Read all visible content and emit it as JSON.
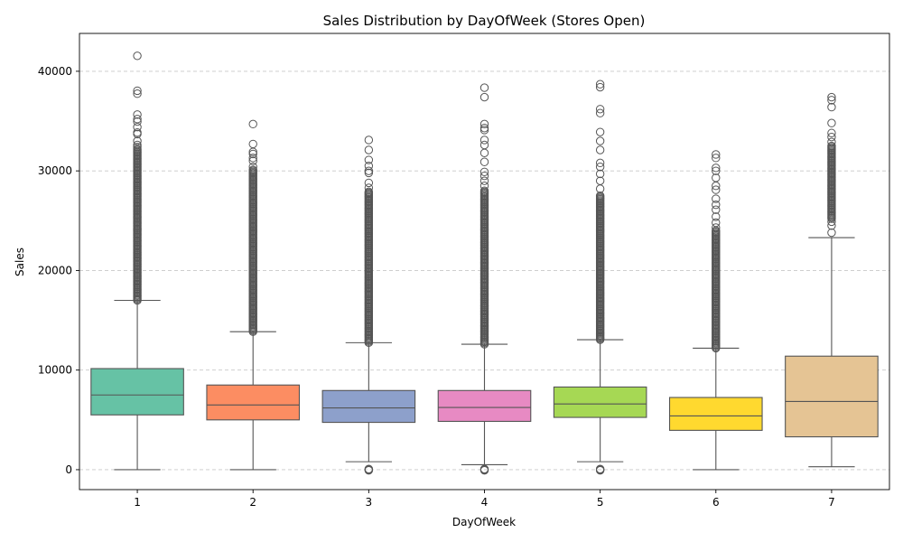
{
  "chart_data": {
    "type": "box",
    "title": "Sales Distribution by DayOfWeek (Stores Open)",
    "xlabel": "DayOfWeek",
    "ylabel": "Sales",
    "ylim": [
      -2000,
      43800
    ],
    "yticks": [
      0,
      10000,
      20000,
      30000,
      40000
    ],
    "grid": "y-dashed",
    "categories": [
      "1",
      "2",
      "3",
      "4",
      "5",
      "6",
      "7"
    ],
    "boxes": [
      {
        "category": "1",
        "color": "#66c2a5",
        "whisker_low": 0,
        "q1": 5500,
        "median": 7500,
        "q3": 10150,
        "whisker_high": 17000,
        "fliers_high": [
          41550,
          38050,
          37750,
          35650,
          35200,
          34950,
          34400,
          33850,
          33700,
          33000,
          32600,
          32400
        ],
        "dense_high": [
          17000,
          32200
        ],
        "fliers_low": []
      },
      {
        "category": "2",
        "color": "#fc8d62",
        "whisker_low": 0,
        "q1": 5000,
        "median": 6500,
        "q3": 8500,
        "whisker_high": 13850,
        "fliers_high": [
          34700,
          32700,
          31900,
          31700,
          31300,
          31000,
          30400,
          30100
        ],
        "dense_high": [
          13850,
          30000
        ],
        "fliers_low": []
      },
      {
        "category": "3",
        "color": "#8da0cb",
        "whisker_low": 800,
        "q1": 4750,
        "median": 6200,
        "q3": 7950,
        "whisker_high": 12750,
        "fliers_high": [
          33100,
          32100,
          31100,
          30500,
          30000,
          29800,
          28800,
          28300,
          27900
        ],
        "dense_high": [
          12750,
          27800
        ],
        "fliers_low": [
          0
        ]
      },
      {
        "category": "4",
        "color": "#e78ac3",
        "whisker_low": 500,
        "q1": 4850,
        "median": 6250,
        "q3": 7950,
        "whisker_high": 12600,
        "fliers_high": [
          38350,
          37400,
          34700,
          34300,
          34100,
          33100,
          32600,
          31800,
          30900,
          29900,
          29500,
          29000,
          28500
        ],
        "dense_high": [
          12600,
          28000
        ],
        "fliers_low": [
          0
        ]
      },
      {
        "category": "5",
        "color": "#a6d854",
        "whisker_low": 800,
        "q1": 5250,
        "median": 6600,
        "q3": 8300,
        "whisker_high": 13050,
        "fliers_high": [
          38700,
          38400,
          36200,
          35800,
          33900,
          33000,
          32100,
          30800,
          30400,
          29700,
          29000,
          28200
        ],
        "dense_high": [
          13050,
          27500
        ],
        "fliers_low": [
          0
        ]
      },
      {
        "category": "6",
        "color": "#ffd92f",
        "whisker_low": 0,
        "q1": 3950,
        "median": 5400,
        "q3": 7250,
        "whisker_high": 12200,
        "fliers_high": [
          31650,
          31300,
          30300,
          30000,
          29300,
          28500,
          28100,
          27200,
          26600,
          26100,
          25400,
          24800,
          24300
        ],
        "dense_high": [
          12200,
          24000
        ],
        "fliers_low": []
      },
      {
        "category": "7",
        "color": "#e5c494",
        "whisker_low": 300,
        "q1": 3300,
        "median": 6850,
        "q3": 11400,
        "whisker_high": 23300,
        "fliers_high": [
          37400,
          37100,
          36400,
          34800,
          33800,
          33400,
          32900,
          24900,
          24500,
          23800
        ],
        "dense_high": [
          25200,
          32500
        ],
        "fliers_low": []
      }
    ]
  }
}
